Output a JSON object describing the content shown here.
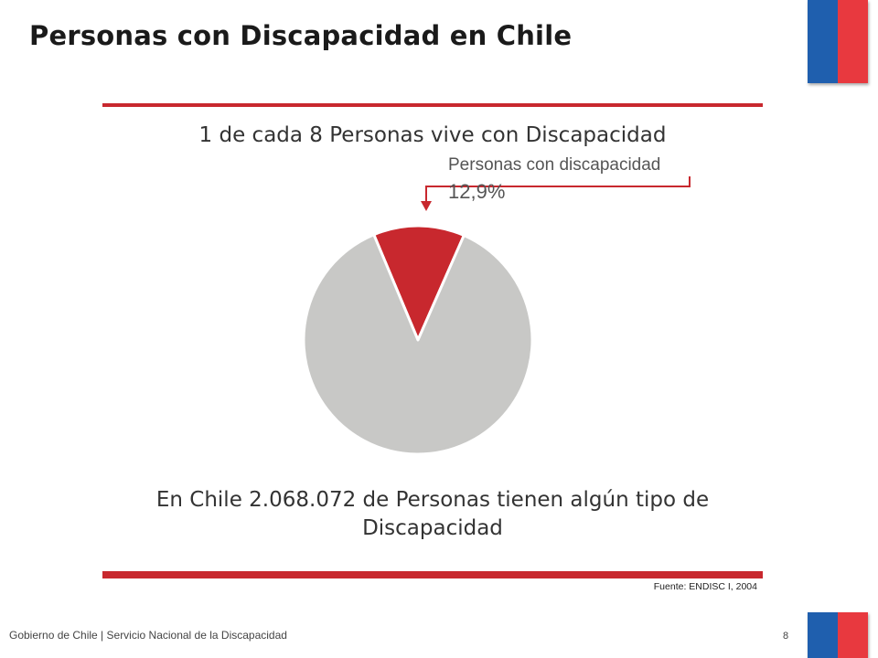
{
  "slide": {
    "title": "Personas con Discapacidad en Chile",
    "headline": "1 de cada 8 Personas vive con Discapacidad",
    "statement": "En Chile 2.068.072 de Personas  tienen algún tipo de Discapacidad",
    "source": "Fuente: ENDISC I, 2004",
    "footer": "Gobierno de Chile | Servicio Nacional de la Discapacidad",
    "page_number": "8"
  },
  "colors": {
    "flag_blue": "#1f5fae",
    "flag_red": "#e8393f",
    "rule_red": "#c8282e",
    "slice_red": "#c8282e",
    "slice_gray": "#c8c8c6"
  },
  "chart_data": {
    "type": "pie",
    "slices": [
      {
        "label": "Personas con discapacidad",
        "value_label": "12,9%",
        "value": 12.9,
        "color": "#c8282e"
      },
      {
        "value": 87.1,
        "color": "#c8c8c6"
      }
    ],
    "annotation": {
      "label": "Personas con discapacidad",
      "value_label": "12,9%"
    }
  }
}
